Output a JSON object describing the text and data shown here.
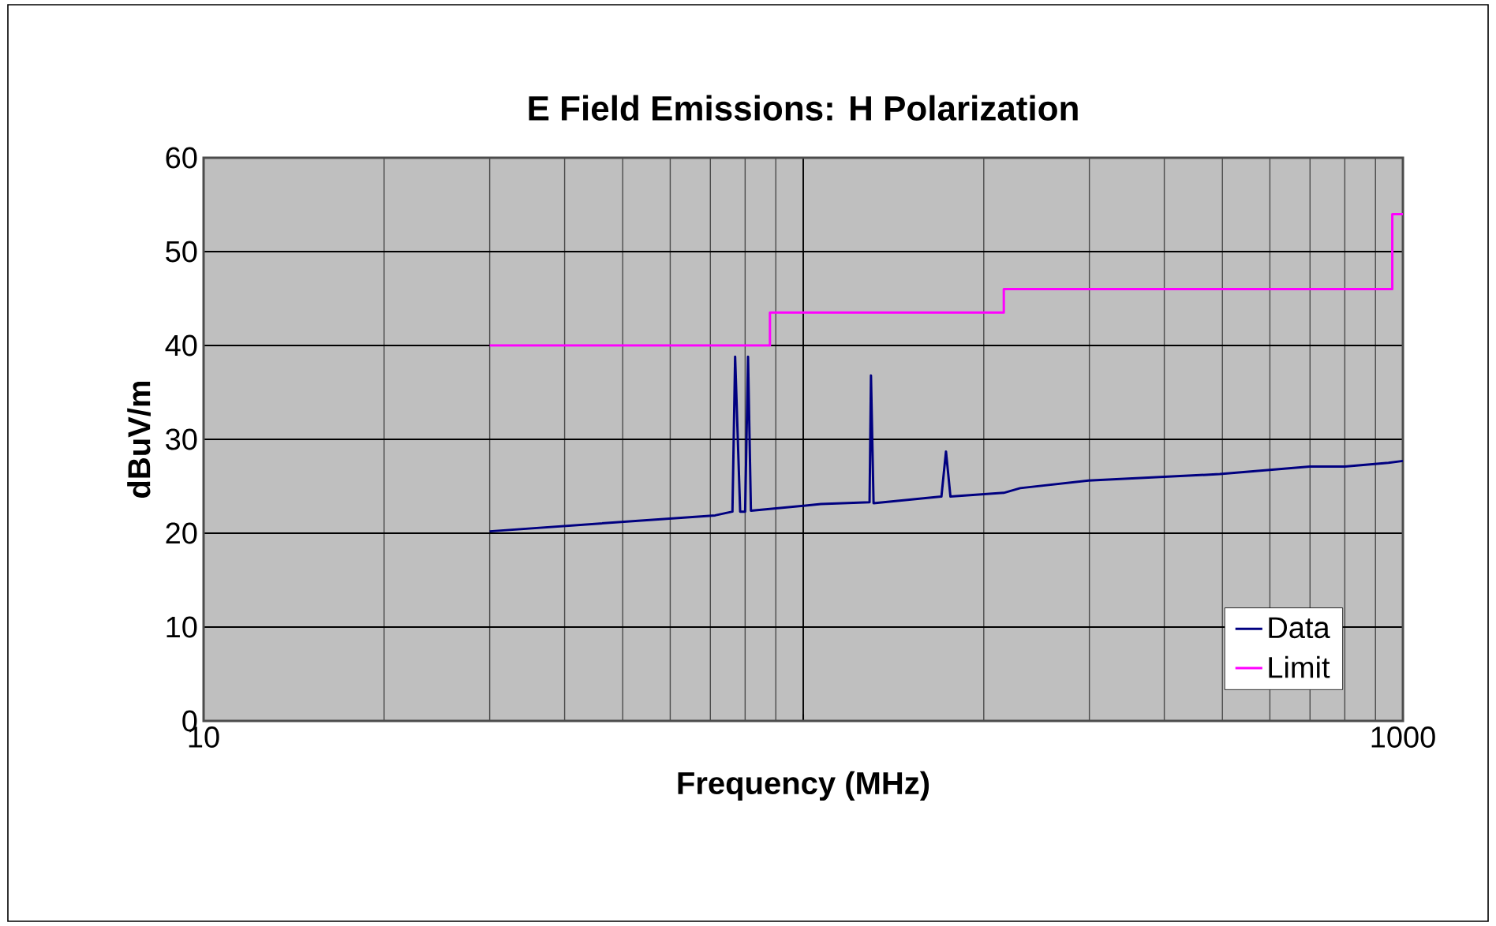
{
  "chart_data": {
    "type": "line",
    "title": "E Field Emissions: H Polarization",
    "xlabel": "Frequency (MHz)",
    "ylabel": "dBuV/m",
    "log": "x",
    "xlim": [
      10,
      1000
    ],
    "xticks": [
      10,
      {
        "value": 100,
        "label": null
      },
      1000
    ],
    "ylim": [
      0,
      60
    ],
    "yticks": [
      0,
      10,
      20,
      30,
      40,
      50,
      60
    ],
    "grid": true,
    "legend": "bottom right",
    "marker": "none",
    "line_style": "solid",
    "series": [
      {
        "name": "Data",
        "color": "#000080",
        "x": [
          30,
          71.3,
          76.2,
          77,
          78.5,
          80,
          80.9,
          81.8,
          107,
          129,
          129.7,
          131,
          170,
          173,
          176,
          216,
          230,
          299,
          495,
          700,
          800,
          946,
          1000
        ],
        "values": [
          20.2,
          21.9,
          22.3,
          38.8,
          22.3,
          22.3,
          38.8,
          22.4,
          23.1,
          23.3,
          36.8,
          23.2,
          23.9,
          28.7,
          23.9,
          24.3,
          24.8,
          25.6,
          26.3,
          27.1,
          27.1,
          27.5,
          27.7
        ]
      },
      {
        "name": "Limit",
        "color": "#ff00ff",
        "x": [
          30,
          88,
          88,
          216,
          216,
          960,
          960,
          1000
        ],
        "values": [
          40,
          40,
          43.5,
          43.5,
          46,
          46,
          54,
          54
        ]
      }
    ]
  }
}
